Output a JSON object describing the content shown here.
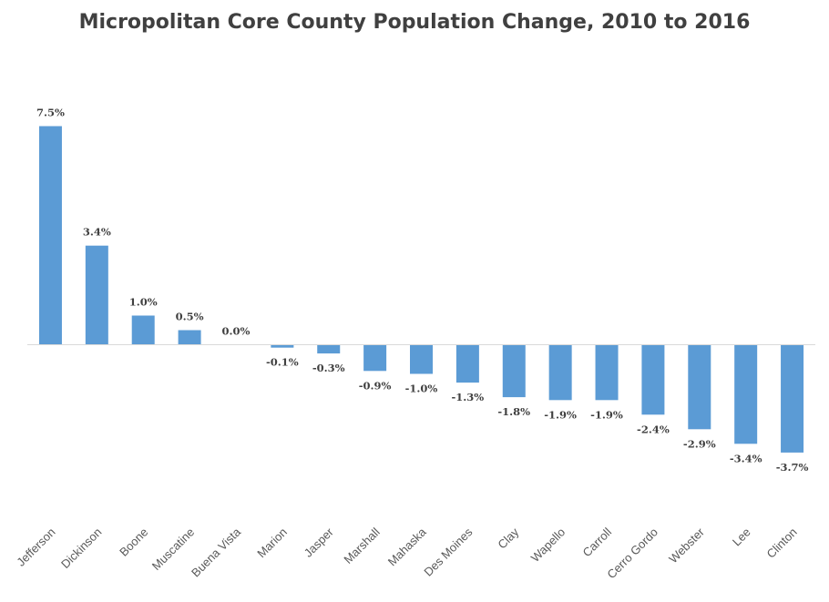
{
  "chart_data": {
    "type": "bar",
    "title": "Micropolitan Core County Population Change, 2010 to 2016",
    "xlabel": "",
    "ylabel": "",
    "categories": [
      "Jefferson",
      "Dickinson",
      "Boone",
      "Muscatine",
      "Buena Vista",
      "Marion",
      "Jasper",
      "Marshall",
      "Mahaska",
      "Des Moines",
      "Clay",
      "Wapello",
      "Carroll",
      "Cerro Gordo",
      "Webster",
      "Lee",
      "Clinton"
    ],
    "values": [
      7.5,
      3.4,
      1.0,
      0.5,
      0.0,
      -0.1,
      -0.3,
      -0.9,
      -1.0,
      -1.3,
      -1.8,
      -1.9,
      -1.9,
      -2.4,
      -2.9,
      -3.4,
      -3.7
    ],
    "data_labels": [
      "7.5%",
      "3.4%",
      "1.0%",
      "0.5%",
      "0.0%",
      "-0.1%",
      "-0.3%",
      "-0.9%",
      "-1.0%",
      "-1.3%",
      "-1.8%",
      "-1.9%",
      "-1.9%",
      "-2.4%",
      "-2.9%",
      "-3.4%",
      "-3.7%"
    ],
    "bar_color": "#5b9bd5",
    "axis_color": "#d9d9d9",
    "grid": false,
    "legend": "none"
  }
}
